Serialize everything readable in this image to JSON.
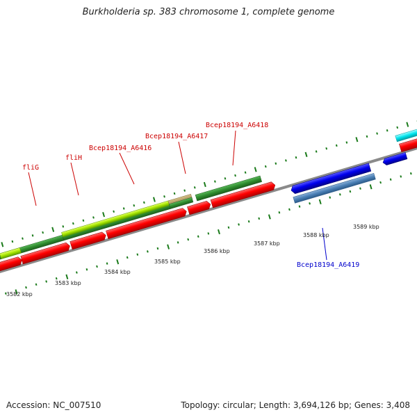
{
  "title": "Burkholderia sp. 383 chromosome 1, complete genome",
  "accession": "Accession: NC_007510",
  "topology": "Topology: circular; Length: 3,694,126 bp; Genes: 3,408",
  "ticks": [
    "3582 kbp",
    "3583 kbp",
    "3584 kbp",
    "3585 kbp",
    "3586 kbp",
    "3587 kbp",
    "3588 kbp",
    "3589 kbp"
  ],
  "gene_labels": [
    {
      "text": "fliG",
      "strand": "forward",
      "color": "#cc0000"
    },
    {
      "text": "fliH",
      "strand": "forward",
      "color": "#cc0000"
    },
    {
      "text": "Bcep18194_A6416",
      "strand": "forward",
      "color": "#cc0000"
    },
    {
      "text": "Bcep18194_A6417",
      "strand": "forward",
      "color": "#cc0000"
    },
    {
      "text": "Bcep18194_A6418",
      "strand": "forward",
      "color": "#cc0000"
    },
    {
      "text": "Bcep18194_A6419",
      "strand": "reverse",
      "color": "#0000cc"
    }
  ],
  "colors": {
    "forward_cds": "#ff0000",
    "reverse_cds": "#0000ee",
    "gene_dark_green": "#2e8b2e",
    "gene_light_green": "#9be000",
    "reverse_gene_steel": "#4a7fb5",
    "cyan_feature": "#00e5ee",
    "backbone": "#8a8a8a",
    "tick": "#1a7a1a"
  }
}
